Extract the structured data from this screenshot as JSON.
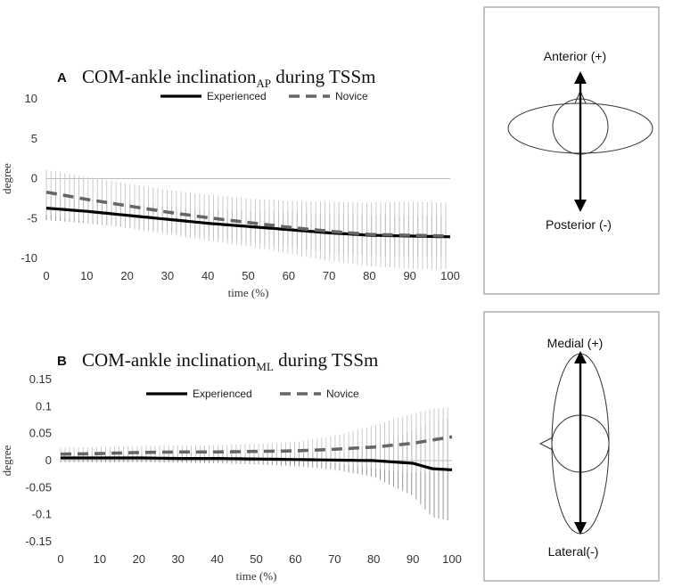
{
  "chart_data": [
    {
      "type": "line",
      "panel_letter": "A",
      "title_main": "COM-ankle inclination",
      "title_sub": "AP",
      "title_tail": " during TSSm",
      "xlabel": "time (%)",
      "ylabel": "degree",
      "xlim": [
        0,
        100
      ],
      "ylim": [
        -10,
        10
      ],
      "x_ticks": [
        "0",
        "10",
        "20",
        "30",
        "40",
        "50",
        "60",
        "70",
        "80",
        "90",
        "100"
      ],
      "y_ticks": [
        "10",
        "5",
        "0",
        "-5",
        "-10"
      ],
      "legend": [
        "Experienced",
        "Novice"
      ],
      "legend_position": "top",
      "x": [
        0,
        10,
        20,
        30,
        40,
        50,
        60,
        70,
        80,
        90,
        100
      ],
      "series": [
        {
          "name": "Experienced",
          "style": "solid",
          "color": "#000000",
          "values": [
            -3.7,
            -4.1,
            -4.6,
            -5.1,
            -5.6,
            -6.0,
            -6.4,
            -6.8,
            -7.1,
            -7.2,
            -7.3
          ],
          "sd": [
            1.5,
            1.5,
            1.5,
            1.6,
            1.7,
            1.9,
            2.2,
            2.4,
            2.5,
            2.6,
            2.6
          ]
        },
        {
          "name": "Novice",
          "style": "dashed",
          "color": "#666666",
          "values": [
            -1.7,
            -2.6,
            -3.4,
            -4.2,
            -4.9,
            -5.5,
            -6.1,
            -6.6,
            -7.0,
            -7.1,
            -7.2
          ],
          "sd": [
            2.8,
            2.8,
            2.8,
            2.8,
            2.9,
            3.0,
            3.3,
            3.7,
            4.0,
            4.2,
            4.2
          ]
        }
      ]
    },
    {
      "type": "line",
      "panel_letter": "B",
      "title_main": "COM-ankle inclination",
      "title_sub": "ML",
      "title_tail": " during TSSm",
      "xlabel": "time (%)",
      "ylabel": "degree",
      "xlim": [
        0,
        100
      ],
      "ylim": [
        -0.15,
        0.15
      ],
      "x_ticks": [
        "0",
        "10",
        "20",
        "30",
        "40",
        "50",
        "60",
        "70",
        "80",
        "90",
        "100"
      ],
      "y_ticks": [
        "0.15",
        "0.1",
        "0.05",
        "0",
        "-0.05",
        "-0.1",
        "-0.15"
      ],
      "legend": [
        "Experienced",
        "Novice"
      ],
      "legend_position": "top",
      "x": [
        0,
        10,
        20,
        30,
        40,
        50,
        60,
        70,
        80,
        90,
        95,
        100
      ],
      "series": [
        {
          "name": "Experienced",
          "style": "solid",
          "color": "#000000",
          "values": [
            0.005,
            0.005,
            0.005,
            0.004,
            0.004,
            0.003,
            0.002,
            0.001,
            0.0,
            -0.005,
            -0.015,
            -0.017
          ],
          "sd": [
            0.008,
            0.008,
            0.008,
            0.008,
            0.009,
            0.01,
            0.012,
            0.018,
            0.03,
            0.06,
            0.09,
            0.095
          ]
        },
        {
          "name": "Novice",
          "style": "dashed",
          "color": "#666666",
          "values": [
            0.012,
            0.013,
            0.015,
            0.016,
            0.016,
            0.017,
            0.018,
            0.021,
            0.025,
            0.032,
            0.038,
            0.044
          ],
          "sd": [
            0.012,
            0.012,
            0.012,
            0.012,
            0.013,
            0.014,
            0.016,
            0.025,
            0.04,
            0.055,
            0.058,
            0.055
          ]
        }
      ]
    }
  ],
  "diagrams": [
    {
      "top_label": "Anterior (+)",
      "bottom_label": "Posterior (-)"
    },
    {
      "top_label": "Medial (+)",
      "bottom_label": "Lateral(-)"
    }
  ]
}
